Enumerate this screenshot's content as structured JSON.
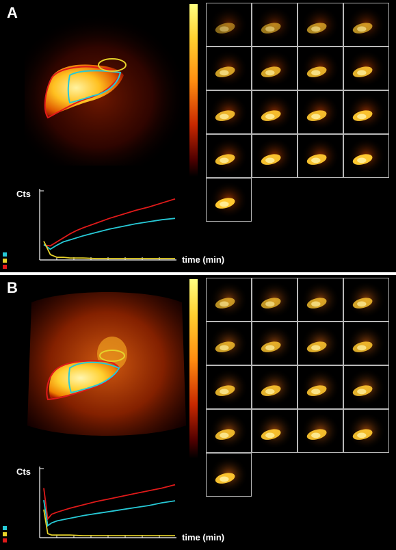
{
  "colors": {
    "liver": "#e01a1a",
    "heart": "#27c9d6",
    "spleen": "#e6d22a",
    "frame_border": "#b8b8b8"
  },
  "panels": [
    {
      "label": "A",
      "chart_data": {
        "type": "line",
        "ylabel": "Cts",
        "xlabel": "time (min)",
        "x": [
          0,
          0.5,
          1,
          1.5,
          2,
          2.5,
          3,
          4,
          5,
          6,
          7,
          8,
          9,
          10
        ],
        "series": [
          {
            "color": "#e01a1a",
            "values": [
              0.22,
              0.21,
              0.27,
              0.33,
              0.39,
              0.44,
              0.48,
              0.55,
              0.62,
              0.68,
              0.74,
              0.79,
              0.85,
              0.91
            ]
          },
          {
            "color": "#27c9d6",
            "values": [
              0.23,
              0.16,
              0.22,
              0.27,
              0.3,
              0.33,
              0.36,
              0.41,
              0.46,
              0.5,
              0.54,
              0.57,
              0.6,
              0.62
            ]
          },
          {
            "color": "#e6d22a",
            "values": [
              0.28,
              0.08,
              0.04,
              0.04,
              0.03,
              0.03,
              0.03,
              0.02,
              0.02,
              0.02,
              0.02,
              0.02,
              0.02,
              0.02
            ]
          }
        ]
      },
      "frames": {
        "rows": [
          4,
          4,
          4,
          4,
          1
        ],
        "intensity": [
          0.35,
          0.45,
          0.55,
          0.6,
          0.7,
          0.75,
          0.8,
          0.85,
          0.85,
          0.9,
          0.9,
          0.95,
          0.9,
          0.95,
          0.95,
          1.0,
          1.0
        ]
      }
    },
    {
      "label": "B",
      "chart_data": {
        "type": "line",
        "ylabel": "Cts",
        "xlabel": "time (min)",
        "x": [
          0,
          0.3,
          0.6,
          1,
          1.5,
          2,
          3,
          4,
          5,
          6,
          7,
          8,
          9,
          10
        ],
        "series": [
          {
            "color": "#e01a1a",
            "values": [
              0.74,
              0.28,
              0.35,
              0.38,
              0.41,
              0.44,
              0.49,
              0.54,
              0.58,
              0.62,
              0.66,
              0.7,
              0.74,
              0.79
            ]
          },
          {
            "color": "#27c9d6",
            "values": [
              0.56,
              0.18,
              0.22,
              0.25,
              0.27,
              0.29,
              0.33,
              0.36,
              0.39,
              0.42,
              0.45,
              0.48,
              0.52,
              0.55
            ]
          },
          {
            "color": "#e6d22a",
            "values": [
              0.42,
              0.06,
              0.04,
              0.04,
              0.04,
              0.04,
              0.03,
              0.03,
              0.03,
              0.03,
              0.03,
              0.03,
              0.03,
              0.03
            ]
          }
        ]
      },
      "frames": {
        "rows": [
          4,
          4,
          4,
          4,
          1
        ],
        "intensity": [
          0.6,
          0.65,
          0.7,
          0.75,
          0.7,
          0.75,
          0.8,
          0.8,
          0.8,
          0.85,
          0.85,
          0.85,
          0.85,
          0.9,
          0.9,
          0.9,
          0.95
        ]
      }
    }
  ]
}
